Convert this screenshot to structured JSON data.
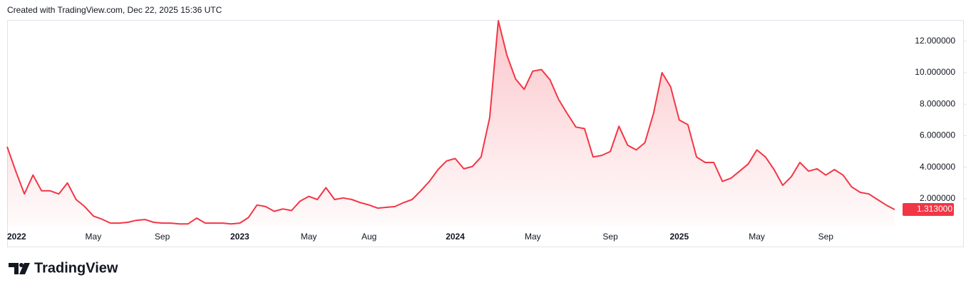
{
  "header": "Created with TradingView.com, Dec 22, 2025 15:36 UTC",
  "brand": "TradingView",
  "chart_data": {
    "type": "area",
    "color": "#f23645",
    "categories": [
      "2022",
      null,
      null,
      null,
      null,
      null,
      null,
      null,
      null,
      null,
      "May",
      null,
      null,
      null,
      null,
      null,
      null,
      null,
      "Sep",
      null,
      null,
      null,
      null,
      null,
      null,
      null,
      null,
      "2023",
      null,
      null,
      null,
      null,
      null,
      null,
      null,
      "May",
      null,
      null,
      null,
      null,
      null,
      null,
      "Aug",
      null,
      null,
      null,
      null,
      null,
      null,
      null,
      null,
      null,
      "2024",
      null,
      null,
      null,
      null,
      null,
      null,
      null,
      null,
      "May",
      null,
      null,
      null,
      null,
      null,
      null,
      null,
      null,
      "Sep",
      null,
      null,
      null,
      null,
      null,
      null,
      null,
      "2025",
      null,
      null,
      null,
      null,
      null,
      null,
      null,
      null,
      "May",
      null,
      null,
      null,
      null,
      null,
      null,
      null,
      "Sep",
      null,
      null,
      null,
      null,
      null,
      null,
      null,
      null
    ],
    "values": [
      5.3,
      3.75,
      2.3,
      3.5,
      2.5,
      2.5,
      2.3,
      3.0,
      1.95,
      1.5,
      0.9,
      0.7,
      0.45,
      0.45,
      0.5,
      0.63,
      0.68,
      0.5,
      0.45,
      0.45,
      0.4,
      0.4,
      0.77,
      0.45,
      0.45,
      0.45,
      0.4,
      0.45,
      0.8,
      1.6,
      1.5,
      1.2,
      1.35,
      1.25,
      1.85,
      2.15,
      1.95,
      2.7,
      1.95,
      2.05,
      1.95,
      1.75,
      1.6,
      1.4,
      1.45,
      1.5,
      1.75,
      1.95,
      2.5,
      3.1,
      3.85,
      4.4,
      4.55,
      3.9,
      4.05,
      4.65,
      7.15,
      13.3,
      11.1,
      9.6,
      8.95,
      10.1,
      10.2,
      9.55,
      8.3,
      7.4,
      6.55,
      6.45,
      4.65,
      4.75,
      5.0,
      6.6,
      5.4,
      5.1,
      5.55,
      7.4,
      10.0,
      9.1,
      7.0,
      6.7,
      4.65,
      4.3,
      4.3,
      3.1,
      3.3,
      3.75,
      4.2,
      5.1,
      4.65,
      3.85,
      2.85,
      3.4,
      4.3,
      3.75,
      3.9,
      3.5,
      3.85,
      3.5,
      2.75,
      2.4,
      2.3,
      1.95,
      1.6,
      1.313
    ],
    "value_labels": [
      null,
      null,
      null,
      null,
      null,
      null,
      null,
      null,
      null,
      null,
      null,
      null,
      null,
      null,
      null,
      null,
      null,
      null,
      null,
      null,
      null,
      null,
      null,
      null,
      null,
      null,
      null,
      null,
      null,
      null,
      null,
      null,
      null,
      null,
      null,
      null,
      null,
      null,
      null,
      null,
      null,
      null,
      null,
      null,
      null,
      null,
      null,
      null,
      null,
      null,
      null,
      null,
      null,
      null,
      null,
      null,
      null,
      null,
      null,
      null,
      null,
      null,
      null,
      null,
      null,
      null,
      null,
      null,
      null,
      null,
      null,
      null,
      null,
      null,
      null,
      null,
      null,
      null,
      null,
      null,
      null,
      null,
      null,
      null,
      null,
      null,
      null,
      null,
      null,
      null,
      null,
      null,
      null,
      null,
      null,
      null,
      null,
      null,
      null,
      null,
      null,
      null,
      null,
      "1.313000"
    ],
    "ylim": [
      0.23,
      13.35
    ],
    "yticks": [
      {
        "value": 2,
        "label": "2.000000"
      },
      {
        "value": 4,
        "label": "4.000000"
      },
      {
        "value": 6,
        "label": "6.000000"
      },
      {
        "value": 8,
        "label": "8.000000"
      },
      {
        "value": 10,
        "label": "10.000000"
      },
      {
        "value": 12,
        "label": "12.000000"
      }
    ],
    "grid": false
  }
}
